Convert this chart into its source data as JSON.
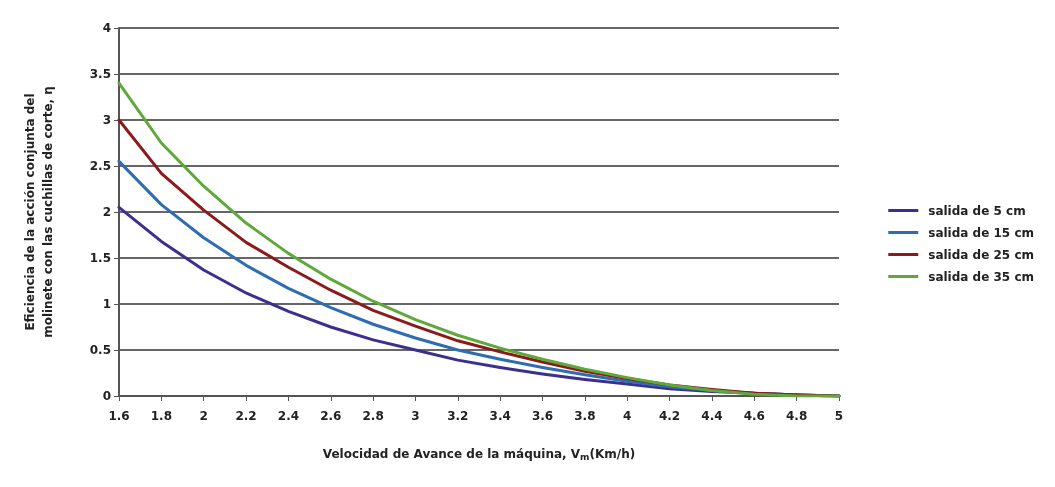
{
  "chart_data": {
    "type": "line",
    "xlabel": "Velocidad de Avance de la máquina, V$_{m}$(Km/h)",
    "ylabel": "Eficiencia de la acción conjunta del\nmolinete con las cuchillas de corte, η",
    "x": [
      1.6,
      1.8,
      2,
      2.2,
      2.4,
      2.6,
      2.8,
      3,
      3.2,
      3.4,
      3.6,
      3.8,
      4,
      4.2,
      4.4,
      4.6,
      4.8,
      5
    ],
    "series": [
      {
        "name": "salida de 5 cm",
        "color": "#3b2f8f",
        "values": [
          2.05,
          1.68,
          1.37,
          1.12,
          0.92,
          0.75,
          0.61,
          0.5,
          0.39,
          0.31,
          0.24,
          0.18,
          0.13,
          0.08,
          0.05,
          0.03,
          0.01,
          0
        ]
      },
      {
        "name": "salida de 15 cm",
        "color": "#2e6db4",
        "values": [
          2.55,
          2.08,
          1.72,
          1.42,
          1.17,
          0.96,
          0.78,
          0.63,
          0.5,
          0.4,
          0.31,
          0.23,
          0.16,
          0.1,
          0.06,
          0.03,
          0.01,
          0
        ]
      },
      {
        "name": "salida de 25 cm",
        "color": "#8b1a1a",
        "values": [
          3,
          2.42,
          2.02,
          1.67,
          1.4,
          1.15,
          0.93,
          0.76,
          0.6,
          0.48,
          0.37,
          0.27,
          0.19,
          0.12,
          0.07,
          0.03,
          0.01,
          0
        ]
      },
      {
        "name": "salida de 35 cm",
        "color": "#5fa83a",
        "values": [
          3.4,
          2.75,
          2.28,
          1.88,
          1.55,
          1.27,
          1.03,
          0.83,
          0.66,
          0.52,
          0.4,
          0.29,
          0.2,
          0.12,
          0.06,
          0.02,
          0,
          0
        ]
      }
    ],
    "xlim": [
      1.6,
      5
    ],
    "xticks": [
      1.6,
      1.8,
      2,
      2.2,
      2.4,
      2.6,
      2.8,
      3,
      3.2,
      3.4,
      3.6,
      3.8,
      4,
      4.2,
      4.4,
      4.6,
      4.8,
      5
    ],
    "ylim": [
      0,
      4
    ],
    "yticks": [
      0,
      0.5,
      1,
      1.5,
      2,
      2.5,
      3,
      3.5,
      4
    ],
    "grid": "y",
    "legend": "right",
    "marker": "none",
    "line_style": "solid"
  }
}
